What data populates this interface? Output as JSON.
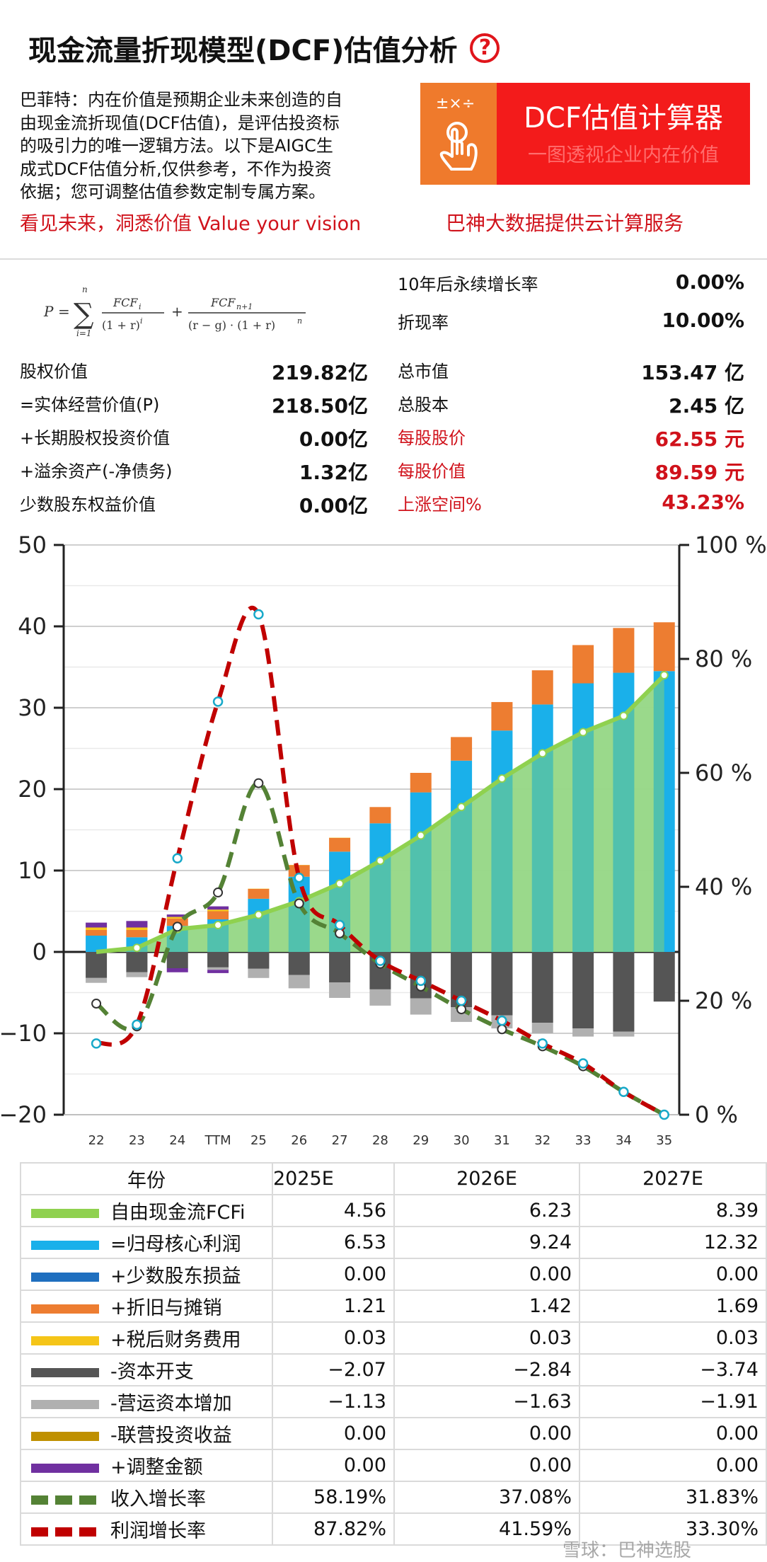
{
  "header": {
    "title": "现金流量折现模型(DCF)估值分析",
    "help_icon": "?"
  },
  "intro": {
    "lines": [
      "巴菲特：内在价值是预期企业未来创造的自",
      "由现金流折现值(DCF估值)，是评估投资标",
      "的吸引力的唯一逻辑方法。以下是AIGC生",
      "成式DCF估值分析,仅供参考，不作为投资",
      "依据；您可调整估值参数定制专属方案。"
    ],
    "slogan": "看见未来，洞悉价值 Value your vision"
  },
  "banner": {
    "icon_ops": "±×÷",
    "title": "DCF估值计算器",
    "subtitle": "一图透视企业内在价值",
    "cloud_text": "巴神大数据提供云计算服务",
    "colors": {
      "left": "#ef7a2c",
      "right": "#f31b1b"
    }
  },
  "params": {
    "perpetual_growth_label": "10年后永续增长率",
    "perpetual_growth_value": "0.00%",
    "discount_rate_label": "折现率",
    "discount_rate_value": "10.00%"
  },
  "valuation_left": [
    {
      "label": "股权价值",
      "value": "219.82亿"
    },
    {
      "label": "=实体经营价值(P)",
      "value": "218.50亿"
    },
    {
      "label": "+长期股权投资价值",
      "value": "0.00亿"
    },
    {
      "label": "+溢余资产(-净债务)",
      "value": "1.32亿"
    },
    {
      "label": "少数股东权益价值",
      "value": "0.00亿"
    }
  ],
  "valuation_right": [
    {
      "label": "总市值",
      "value": "153.47 亿",
      "red": false
    },
    {
      "label": "总股本",
      "value": "2.45 亿",
      "red": false
    },
    {
      "label": "每股股价",
      "value": "62.55 元",
      "red": true
    },
    {
      "label": "每股价值",
      "value": "89.59 元",
      "red": true
    },
    {
      "label": "上涨空间%",
      "value": "43.23%",
      "red": true
    }
  ],
  "chart_data": {
    "type": "bar",
    "categories": [
      "22",
      "23",
      "24",
      "TTM",
      "25",
      "26",
      "27",
      "28",
      "29",
      "30",
      "31",
      "32",
      "33",
      "34",
      "35"
    ],
    "ylim_left": [
      -20,
      50
    ],
    "yticks_left": [
      "50",
      "40",
      "30",
      "20",
      "10",
      "0",
      "−10",
      "−20"
    ],
    "ylim_right": [
      0,
      100
    ],
    "yticks_right": [
      "100 %",
      "80 %",
      "60 %",
      "40 %",
      "20 %",
      "0 %"
    ],
    "grid": true,
    "stacks_positive": [
      {
        "name": "=归母核心利润",
        "color": "#1ab0ea",
        "values": [
          2.0,
          1.8,
          3.2,
          4.0,
          6.53,
          9.24,
          12.32,
          15.8,
          19.6,
          23.5,
          27.2,
          30.4,
          33.0,
          34.3,
          34.5
        ]
      },
      {
        "name": "+折旧与摊销",
        "color": "#ed7d31",
        "values": [
          0.7,
          0.9,
          0.9,
          1.0,
          1.21,
          1.42,
          1.69,
          2.0,
          2.4,
          2.9,
          3.5,
          4.2,
          4.7,
          5.5,
          6.0
        ]
      },
      {
        "name": "+税后财务费用",
        "color": "#f5c518",
        "values": [
          0.3,
          0.3,
          0.2,
          0.2,
          0.03,
          0.03,
          0.03,
          0,
          0,
          0,
          0,
          0,
          0,
          0,
          0
        ]
      },
      {
        "name": "+调整金额",
        "color": "#7030a0",
        "values": [
          0.6,
          0.8,
          0.3,
          0.4,
          0,
          0,
          0,
          0,
          0,
          0,
          0,
          0,
          0,
          0,
          0
        ]
      }
    ],
    "stacks_negative": [
      {
        "name": "-资本开支",
        "color": "#555555",
        "values": [
          -3.2,
          -2.5,
          -2.0,
          -1.9,
          -2.07,
          -2.84,
          -3.74,
          -4.6,
          -5.7,
          -6.8,
          -7.8,
          -8.7,
          -9.4,
          -9.8,
          -6.1
        ]
      },
      {
        "name": "-营运资本增加",
        "color": "#b0b0b0",
        "values": [
          -0.6,
          -0.6,
          0,
          -0.3,
          -1.13,
          -1.63,
          -1.91,
          -2.0,
          -2.0,
          -1.8,
          -1.6,
          -1.3,
          -1.0,
          -0.6,
          0
        ]
      },
      {
        "name": "+调整金额",
        "color": "#7030a0",
        "values": [
          0,
          0,
          -0.5,
          -0.4,
          0,
          0,
          0,
          0,
          0,
          0,
          0,
          0,
          0,
          0,
          0
        ]
      }
    ],
    "fcf": {
      "name": "自由现金流FCFi",
      "color": "#8fd14f",
      "fill": "#b7e49a",
      "values": [
        0,
        0.5,
        2.8,
        3.3,
        4.56,
        6.23,
        8.39,
        11.2,
        14.3,
        17.8,
        21.3,
        24.4,
        27.0,
        29.0,
        34.0
      ]
    },
    "revenue_growth": {
      "name": "收入增长率",
      "color": "#548235",
      "values": [
        19.5,
        15.5,
        33,
        39,
        58.19,
        37.08,
        31.83,
        26.5,
        22.5,
        18.5,
        15,
        12,
        8.5,
        4,
        0
      ]
    },
    "profit_growth": {
      "name": "利润增长率",
      "color": "#c00000",
      "values": [
        12.5,
        15.8,
        45,
        72.5,
        87.82,
        41.59,
        33.3,
        27,
        23.5,
        20,
        16.5,
        12.5,
        9,
        4,
        0
      ]
    }
  },
  "table": {
    "header": {
      "year_label": "年份",
      "years": [
        "2025E",
        "2026E",
        "2027E"
      ]
    },
    "rows": [
      {
        "label": "自由现金流FCFi",
        "swatch": "#8fd14f",
        "dash": false,
        "values": [
          "4.56",
          "6.23",
          "8.39"
        ]
      },
      {
        "label": "=归母核心利润",
        "swatch": "#1ab0ea",
        "dash": false,
        "values": [
          "6.53",
          "9.24",
          "12.32"
        ]
      },
      {
        "label": "+少数股东损益",
        "swatch": "#1f6fbf",
        "dash": false,
        "values": [
          "0.00",
          "0.00",
          "0.00"
        ]
      },
      {
        "label": "+折旧与摊销",
        "swatch": "#ed7d31",
        "dash": false,
        "values": [
          "1.21",
          "1.42",
          "1.69"
        ]
      },
      {
        "label": "+税后财务费用",
        "swatch": "#f5c518",
        "dash": false,
        "values": [
          "0.03",
          "0.03",
          "0.03"
        ]
      },
      {
        "label": "-资本开支",
        "swatch": "#555555",
        "dash": false,
        "values": [
          "−2.07",
          "−2.84",
          "−3.74"
        ]
      },
      {
        "label": "-营运资本增加",
        "swatch": "#b0b0b0",
        "dash": false,
        "values": [
          "−1.13",
          "−1.63",
          "−1.91"
        ]
      },
      {
        "label": "-联营投资收益",
        "swatch": "#bf9000",
        "dash": false,
        "values": [
          "0.00",
          "0.00",
          "0.00"
        ]
      },
      {
        "label": "+调整金额",
        "swatch": "#7030a0",
        "dash": false,
        "values": [
          "0.00",
          "0.00",
          "0.00"
        ]
      },
      {
        "label": "收入增长率",
        "swatch": "#548235",
        "dash": true,
        "values": [
          "58.19%",
          "37.08%",
          "31.83%"
        ]
      },
      {
        "label": "利润增长率",
        "swatch": "#c00000",
        "dash": true,
        "values": [
          "87.82%",
          "41.59%",
          "33.30%"
        ]
      }
    ]
  },
  "watermark": "雪球：巴神选股"
}
